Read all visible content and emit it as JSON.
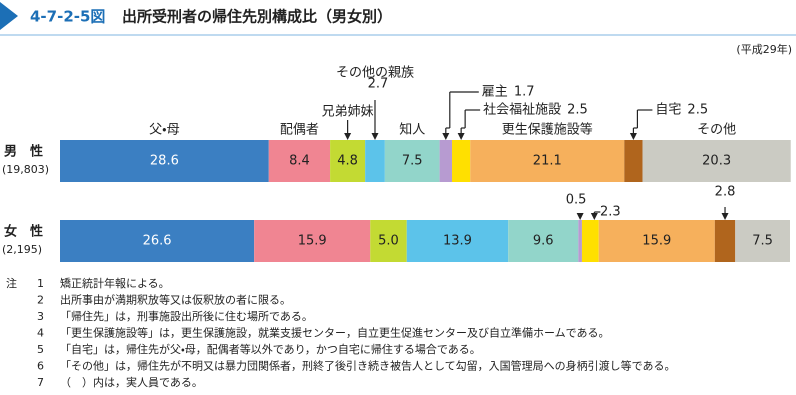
{
  "chart_data": {
    "type": "stacked-bar-h",
    "figure_number": "4-7-2-5図",
    "title": "出所受刑者の帰住先別構成比（男女別）",
    "subtitle": "(平成29年)",
    "categories": [
      "男　性",
      "女　性"
    ],
    "category_counts": [
      "(19,803)",
      "(2,195)"
    ],
    "xlim": [
      0,
      100
    ],
    "series": [
      {
        "name": "父・母",
        "color": "#3b7fc2",
        "values": [
          28.6,
          26.6
        ]
      },
      {
        "name": "配偶者",
        "color": "#f08592",
        "values": [
          8.4,
          15.9
        ]
      },
      {
        "name": "兄弟姉妹",
        "color": "#c3da33",
        "values": [
          4.8,
          5.0
        ],
        "value_labels": [
          "4.8",
          "5.0"
        ]
      },
      {
        "name": "その他の親族",
        "color": "#5cc3ea",
        "values": [
          2.7,
          13.9
        ]
      },
      {
        "name": "知人",
        "color": "#92d5ca",
        "values": [
          7.5,
          9.6
        ]
      },
      {
        "name": "雇主",
        "color": "#b79bd1",
        "values": [
          1.7,
          0.5
        ]
      },
      {
        "name": "社会福祉施設",
        "color": "#ffe000",
        "values": [
          2.5,
          2.3
        ]
      },
      {
        "name": "更生保護施設等",
        "color": "#f6b05c",
        "values": [
          21.1,
          15.9
        ]
      },
      {
        "name": "自宅",
        "color": "#b0651d",
        "values": [
          2.5,
          2.8
        ]
      },
      {
        "name": "その他",
        "color": "#cbcbc3",
        "values": [
          20.3,
          7.5
        ]
      }
    ]
  },
  "notes_label": "注",
  "notes": [
    {
      "number": "1",
      "text": "矯正統計年報による。"
    },
    {
      "number": "2",
      "text": "出所事由が満期釈放等又は仮釈放の者に限る。"
    },
    {
      "number": "3",
      "text": "「帰住先」は，刑事施設出所後に住む場所である。"
    },
    {
      "number": "4",
      "text": "「更生保護施設等」は，更生保護施設，就業支援センター，自立更生促進センター及び自立準備ホームである。"
    },
    {
      "number": "5",
      "text": "「自宅」は，帰住先が父・母，配偶者等以外であり，かつ自宅に帰住する場合である。"
    },
    {
      "number": "6",
      "text": "「その他」は，帰住先が不明又は暴力団関係者，刑終了後引き続き被告人として勾留，入国管理局への身柄引渡し等である。"
    },
    {
      "number": "7",
      "text": "（　）内は，実人員である。"
    }
  ]
}
